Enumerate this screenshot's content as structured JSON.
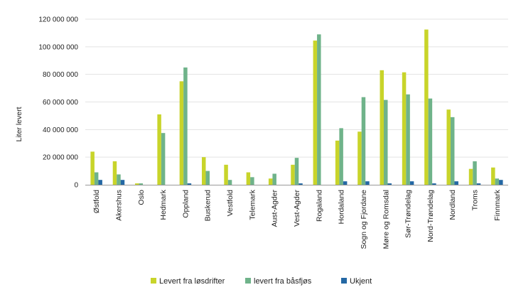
{
  "chart_data": {
    "type": "bar",
    "title": "",
    "xlabel": "",
    "ylabel": "Liter levert",
    "ylim": [
      0,
      120000000
    ],
    "yticks": [
      0,
      20000000,
      40000000,
      60000000,
      80000000,
      100000000,
      120000000
    ],
    "ytick_labels": [
      "0",
      "20 000 000",
      "40 000 000",
      "60 000 000",
      "80 000 000",
      "100 000 000",
      "120 000 000"
    ],
    "grid": true,
    "legend_position": "bottom",
    "categories": [
      "Østfold",
      "Akershus",
      "Oslo",
      "Hedmark",
      "Oppland",
      "Buskerud",
      "Vestfold",
      "Telemark",
      "Aust-Agder",
      "Vest-Agder",
      "Rogaland",
      "Hordaland",
      "Sogn og Fjordane",
      "Møre og Romsdal",
      "Sør-Trøndelag",
      "Nord-Trøndelag",
      "Nordland",
      "Troms",
      "Finnmark"
    ],
    "series": [
      {
        "name": "Levert fra løsdrifter",
        "color": "#c8d42a",
        "values": [
          24000000,
          17000000,
          1000000,
          51000000,
          75000000,
          20000000,
          14500000,
          9000000,
          4500000,
          14500000,
          104500000,
          32000000,
          38500000,
          83000000,
          81500000,
          112500000,
          54500000,
          11500000,
          12500000
        ]
      },
      {
        "name": "levert fra båsfjøs",
        "color": "#6fb38a",
        "values": [
          9000000,
          7500000,
          1000000,
          37500000,
          85000000,
          10000000,
          3500000,
          5500000,
          8000000,
          19500000,
          109000000,
          41000000,
          63500000,
          61500000,
          65500000,
          62500000,
          49000000,
          17000000,
          4500000
        ]
      },
      {
        "name": "Ukjent",
        "color": "#2468a4",
        "values": [
          3500000,
          3500000,
          0,
          0,
          1000000,
          0,
          0,
          0,
          0,
          1000000,
          0,
          2500000,
          2500000,
          1000000,
          2500000,
          1000000,
          2500000,
          1000000,
          3500000
        ]
      }
    ]
  }
}
